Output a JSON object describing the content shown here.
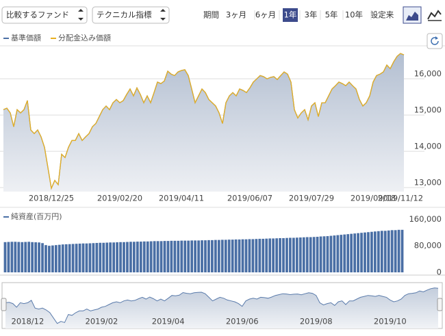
{
  "controls": {
    "compare": "比較するファンド",
    "technical": "テクニカル指標",
    "period_label": "期間",
    "periods": [
      "3ヶ月",
      "6ヶ月",
      "1年",
      "3年",
      "5年",
      "10年",
      "設定来"
    ],
    "active_period": 2
  },
  "chart_data": [
    {
      "type": "line",
      "categories": [
        null,
        null,
        null,
        null,
        null,
        null,
        null,
        null,
        null,
        null,
        null,
        null,
        null,
        null,
        "2018/12/25",
        null,
        null,
        null,
        null,
        null,
        null,
        null,
        null,
        null,
        null,
        null,
        null,
        null,
        null,
        null,
        null,
        null,
        null,
        null,
        "2019/02/20",
        null,
        null,
        null,
        null,
        null,
        null,
        null,
        null,
        null,
        null,
        null,
        null,
        null,
        null,
        null,
        null,
        null,
        "2019/04/11",
        null,
        null,
        null,
        null,
        null,
        null,
        null,
        null,
        null,
        null,
        null,
        null,
        null,
        null,
        null,
        null,
        null,
        null,
        null,
        "2019/06/07",
        null,
        null,
        null,
        null,
        null,
        null,
        null,
        null,
        null,
        null,
        null,
        null,
        null,
        null,
        null,
        null,
        null,
        "2019/07/29",
        null,
        null,
        null,
        null,
        null,
        null,
        null,
        null,
        null,
        null,
        null,
        null,
        null,
        null,
        null,
        null,
        null,
        "2019/09/18",
        null,
        null,
        null,
        null,
        null,
        null,
        null,
        "2019/11/12",
        null
      ],
      "series": [
        {
          "name": "基準価額",
          "color": "#4a6fa5",
          "values": [
            15150,
            15190,
            15060,
            14680,
            15150,
            15060,
            15150,
            15400,
            14590,
            14490,
            14590,
            14400,
            14110,
            13550,
            12980,
            13200,
            13080,
            13920,
            13830,
            14110,
            14300,
            14300,
            14490,
            14300,
            14400,
            14490,
            14680,
            14770,
            14960,
            15150,
            15250,
            15150,
            15340,
            15430,
            15340,
            15400,
            15570,
            15720,
            15530,
            15750,
            15570,
            15340,
            15530,
            15340,
            15620,
            15910,
            15870,
            15940,
            16210,
            16130,
            16090,
            16190,
            16230,
            16250,
            16090,
            15720,
            15340,
            15530,
            15720,
            15620,
            15430,
            15340,
            15250,
            15060,
            14770,
            15340,
            15530,
            15620,
            15530,
            15720,
            15680,
            15620,
            15750,
            15910,
            16000,
            16090,
            16060,
            16000,
            16040,
            16060,
            15980,
            16090,
            16190,
            16130,
            15910,
            15150,
            14920,
            15060,
            15150,
            14870,
            15250,
            15340,
            14960,
            15340,
            15340,
            15530,
            15720,
            15810,
            15910,
            15870,
            15810,
            15910,
            15810,
            15720,
            15430,
            15250,
            15340,
            15530,
            15910,
            16090,
            16130,
            16190,
            16380,
            16280,
            16470,
            16620,
            16700,
            16660
          ]
        },
        {
          "name": "分配金込み価額",
          "color": "#e8b020",
          "values": [
            15150,
            15190,
            15060,
            14680,
            15150,
            15060,
            15150,
            15400,
            14590,
            14490,
            14590,
            14400,
            14110,
            13550,
            12980,
            13200,
            13080,
            13920,
            13830,
            14110,
            14300,
            14300,
            14490,
            14300,
            14400,
            14490,
            14680,
            14770,
            14960,
            15150,
            15250,
            15150,
            15340,
            15430,
            15340,
            15400,
            15570,
            15720,
            15530,
            15750,
            15570,
            15340,
            15530,
            15340,
            15620,
            15910,
            15870,
            15940,
            16210,
            16130,
            16090,
            16190,
            16230,
            16250,
            16090,
            15720,
            15340,
            15530,
            15720,
            15620,
            15430,
            15340,
            15250,
            15060,
            14770,
            15340,
            15530,
            15620,
            15530,
            15720,
            15680,
            15620,
            15750,
            15910,
            16000,
            16090,
            16060,
            16000,
            16040,
            16060,
            15980,
            16090,
            16190,
            16130,
            15910,
            15150,
            14920,
            15060,
            15150,
            14870,
            15250,
            15340,
            14960,
            15340,
            15340,
            15530,
            15720,
            15810,
            15910,
            15870,
            15810,
            15910,
            15810,
            15720,
            15430,
            15250,
            15340,
            15530,
            15910,
            16090,
            16130,
            16190,
            16380,
            16280,
            16470,
            16620,
            16700,
            16660
          ]
        }
      ],
      "ylim": [
        12890,
        16890
      ],
      "yticks": [
        {
          "value": 13000,
          "label": "13,000"
        },
        {
          "value": 14000,
          "label": "14,000"
        },
        {
          "value": 15000,
          "label": "15,000"
        },
        {
          "value": 16000,
          "label": "16,000"
        }
      ],
      "grid": true
    },
    {
      "type": "bar",
      "series": [
        {
          "name": "純資産(百万円)",
          "color": "#4a6fa5",
          "values": [
            91000,
            91500,
            92000,
            92000,
            91500,
            91000,
            91500,
            92000,
            91000,
            90500,
            90000,
            88000,
            82000,
            80000,
            81000,
            82000,
            83000,
            84000,
            84500,
            85000,
            85500,
            86000,
            86500,
            87000,
            87000,
            87500,
            88000,
            88500,
            89000,
            89000,
            89500,
            90000,
            90000,
            90500,
            91000,
            91000,
            91500,
            92000,
            92000,
            92500,
            92500,
            93000,
            93000,
            93500,
            94000,
            94000,
            94000,
            94500,
            94500,
            95000,
            95000,
            95000,
            95500,
            95500,
            95500,
            96000,
            96000,
            96000,
            96500,
            96500,
            97000,
            97000,
            97500,
            97500,
            98000,
            98000,
            98500,
            98500,
            99000,
            99000,
            99500,
            99500,
            100000,
            100000,
            100500,
            101000,
            101000,
            101500,
            102000,
            102000,
            102500,
            103000,
            103000,
            103500,
            104000,
            104000,
            104500,
            105000,
            105500,
            106000,
            106000,
            106500,
            107000,
            108000,
            108500,
            109000,
            110000,
            111000,
            112000,
            113000,
            114000,
            115000,
            116000,
            117000,
            118000,
            119000,
            120000,
            121000,
            122000,
            123000,
            124000,
            125000,
            125000,
            126000,
            127000,
            127000,
            128000,
            128000
          ]
        }
      ],
      "ylim": [
        0,
        175000
      ],
      "yticks": [
        0,
        {
          "value": 80000,
          "label": "80,000"
        },
        {
          "value": 160000,
          "label": "160,000"
        }
      ],
      "grid": false
    },
    {
      "type": "area",
      "categories": [
        null,
        null,
        null,
        null,
        null,
        null,
        "2018/12",
        null,
        null,
        null,
        null,
        null,
        null,
        null,
        null,
        null,
        null,
        null,
        null,
        null,
        null,
        null,
        null,
        null,
        null,
        null,
        "2019/02",
        null,
        null,
        null,
        null,
        null,
        null,
        null,
        null,
        null,
        null,
        null,
        null,
        null,
        null,
        null,
        null,
        null,
        "2019/04",
        null,
        null,
        null,
        null,
        null,
        null,
        null,
        null,
        null,
        null,
        null,
        null,
        null,
        null,
        null,
        null,
        null,
        null,
        null,
        "2019/06",
        null,
        null,
        null,
        null,
        null,
        null,
        null,
        null,
        null,
        null,
        null,
        null,
        null,
        null,
        null,
        null,
        null,
        null,
        null,
        "2019/08",
        null,
        null,
        null,
        null,
        null,
        null,
        null,
        null,
        null,
        null,
        null,
        null,
        null,
        null,
        null,
        null,
        null,
        null,
        null,
        "2019/10",
        null,
        null,
        null,
        null,
        null,
        null,
        null,
        null,
        null,
        null,
        null,
        null,
        null
      ]
    }
  ]
}
